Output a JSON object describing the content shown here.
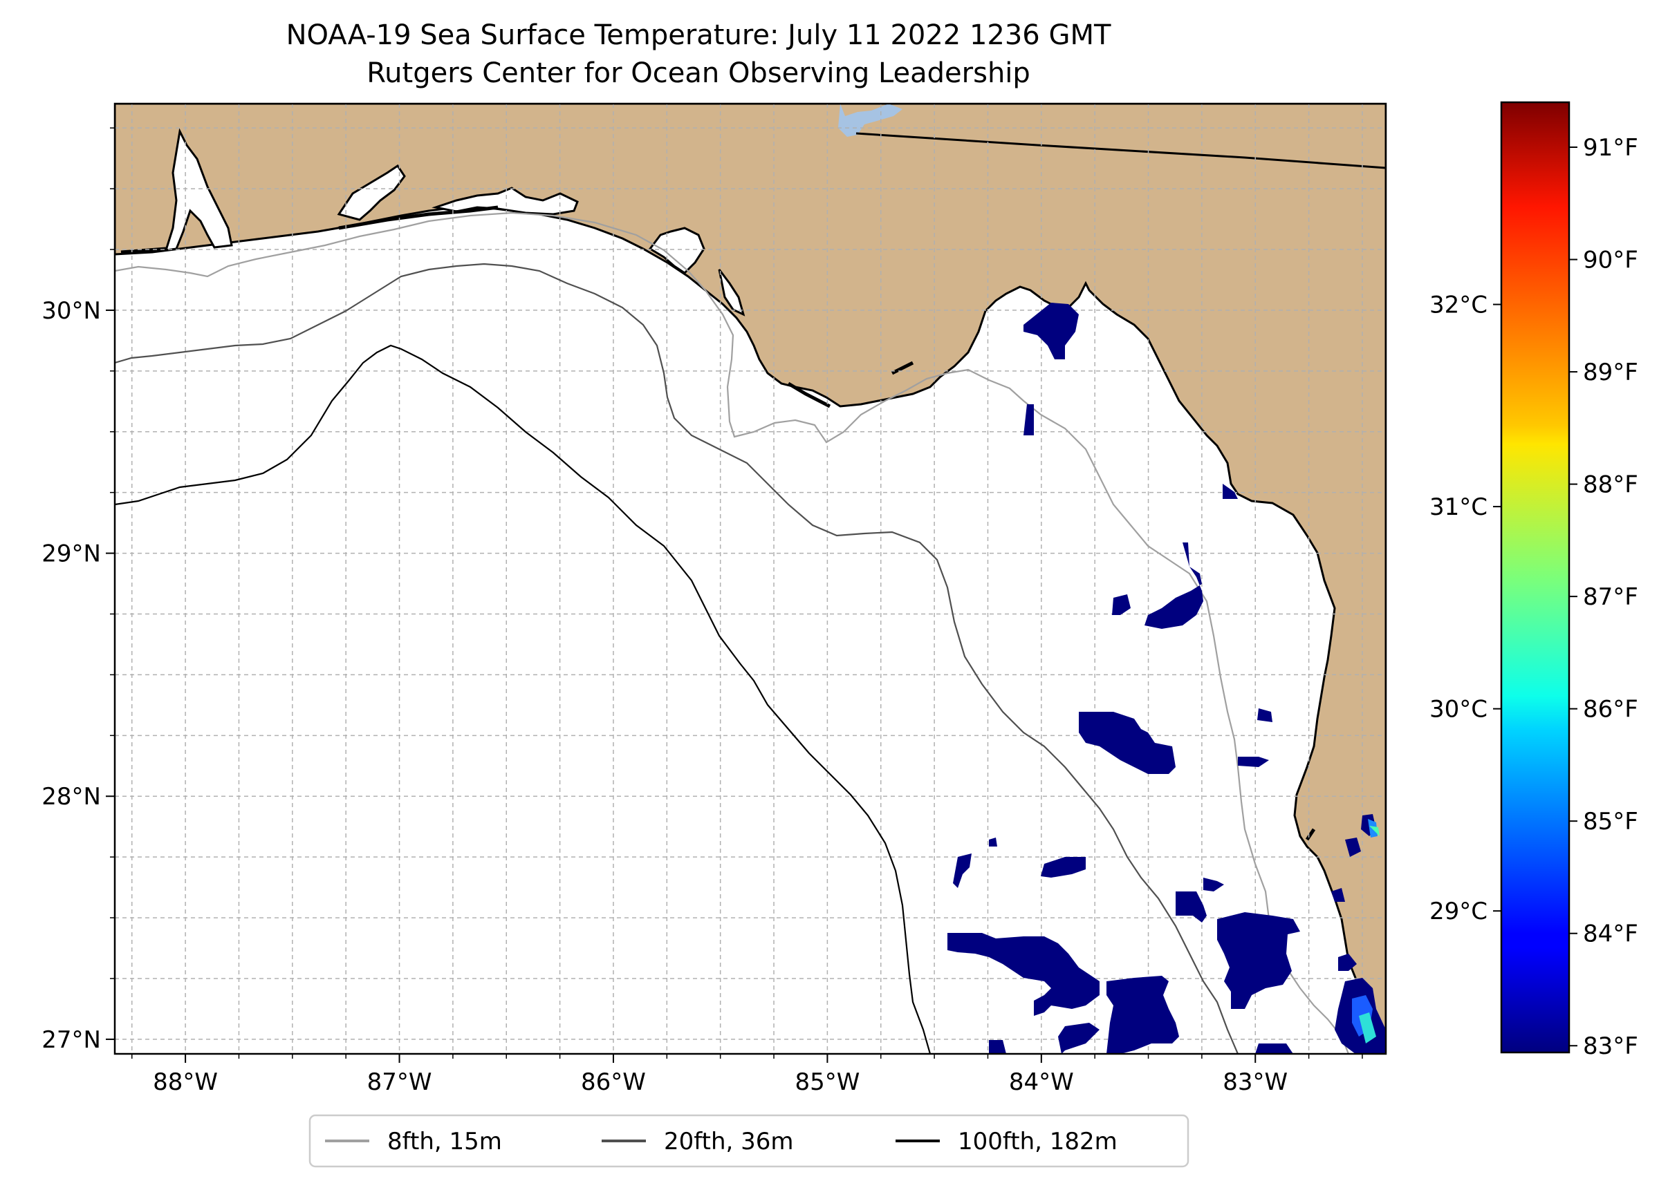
{
  "title": {
    "line1": "NOAA-19 Sea Surface Temperature: July 11 2022 1236 GMT",
    "line2": "Rutgers Center for Ocean Observing Leadership"
  },
  "colors": {
    "land": "#d2b48c",
    "ocean": "#ffffff",
    "lake": "#a6c3e3",
    "coast": "#000000",
    "grid": "#b0b0b0",
    "sst_cold": "#00007f"
  },
  "map": {
    "lon_range": [
      -88.33,
      -82.39
    ],
    "lat_range": [
      26.94,
      30.85
    ],
    "lon_ticks": [
      {
        "value": -88,
        "label": "88°W"
      },
      {
        "value": -87,
        "label": "87°W"
      },
      {
        "value": -86,
        "label": "86°W"
      },
      {
        "value": -85,
        "label": "85°W"
      },
      {
        "value": -84,
        "label": "84°W"
      },
      {
        "value": -83,
        "label": "83°W"
      }
    ],
    "lat_ticks": [
      {
        "value": 27,
        "label": "27°N"
      },
      {
        "value": 28,
        "label": "28°N"
      },
      {
        "value": 29,
        "label": "29°N"
      },
      {
        "value": 30,
        "label": "30°N"
      }
    ],
    "gridlines": true
  },
  "legend": {
    "placement": "bottom-center",
    "items": [
      {
        "label": "8fth, 15m",
        "color": "#a0a0a0"
      },
      {
        "label": "20fth, 36m",
        "color": "#505050"
      },
      {
        "label": "100fth, 182m",
        "color": "#000000"
      }
    ]
  },
  "colorbar": {
    "colormap": "jet",
    "celsius_ticks": [
      {
        "value": 29,
        "label": "29°C"
      },
      {
        "value": 30,
        "label": "30°C"
      },
      {
        "value": 31,
        "label": "31°C"
      },
      {
        "value": 32,
        "label": "32°C"
      }
    ],
    "fahrenheit_ticks": [
      {
        "value": 83,
        "label": "83°F"
      },
      {
        "value": 84,
        "label": "84°F"
      },
      {
        "value": 85,
        "label": "85°F"
      },
      {
        "value": 86,
        "label": "86°F"
      },
      {
        "value": 87,
        "label": "87°F"
      },
      {
        "value": 88,
        "label": "88°F"
      },
      {
        "value": 89,
        "label": "89°F"
      },
      {
        "value": 90,
        "label": "90°F"
      },
      {
        "value": 91,
        "label": "91°F"
      }
    ]
  }
}
